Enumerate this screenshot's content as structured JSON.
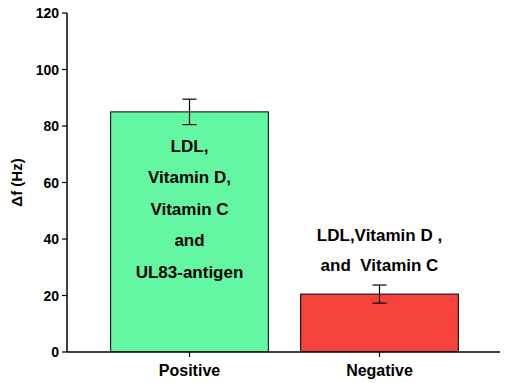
{
  "chart_data": {
    "type": "bar",
    "y_label": "Δf (Hz)",
    "categories": [
      "Positive",
      "Negative"
    ],
    "values": [
      85,
      20.5
    ],
    "errors": [
      4.5,
      3.2
    ],
    "colors": [
      "#63f7a3",
      "#f5423d"
    ],
    "bar_texts": [
      [
        "LDL,",
        "Vitamin D,",
        "Vitamin C",
        "and",
        "UL83-antigen"
      ],
      [
        "LDL,Vitamin D ,",
        "and  Vitamin C"
      ]
    ],
    "ylim": [
      0,
      120
    ],
    "yticks": [
      0,
      20,
      40,
      60,
      80,
      100,
      120
    ],
    "grid": false
  }
}
